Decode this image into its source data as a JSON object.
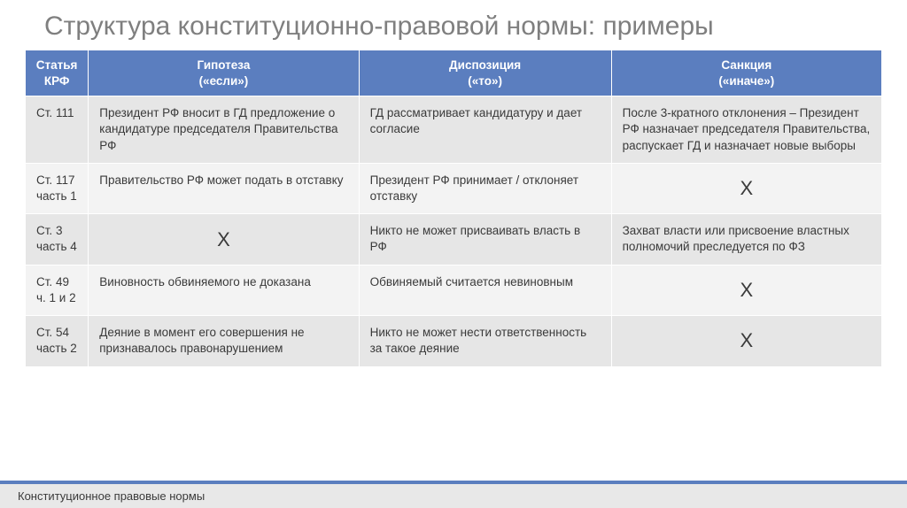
{
  "title": "Структура конституционно-правовой нормы: примеры",
  "table": {
    "type": "table",
    "header_bg": "#5b7ebf",
    "header_fg": "#ffffff",
    "row_odd_bg": "#e6e6e6",
    "row_even_bg": "#f3f3f3",
    "columns": [
      {
        "label_line1": "Статья",
        "label_line2": "КРФ"
      },
      {
        "label_line1": "Гипотеза",
        "label_line2": "(«если»)"
      },
      {
        "label_line1": "Диспозиция",
        "label_line2": "(«то»)"
      },
      {
        "label_line1": "Санкция",
        "label_line2": "(«иначе»)"
      }
    ],
    "x_mark": "X",
    "rows": [
      {
        "article": "Ст. 111",
        "hypothesis": "Президент РФ вносит в ГД предложение о кандидатуре председателя Правительства РФ",
        "disposition": "ГД рассматривает кандидатуру и дает согласие",
        "sanction": "После 3-кратного отклонения – Президент РФ назначает председателя Правительства, распускает ГД и назначает новые выборы",
        "hypothesis_x": false,
        "sanction_x": false
      },
      {
        "article": "Ст. 117 часть 1",
        "hypothesis": "Правительство РФ может подать в отставку",
        "disposition": "Президент РФ принимает / отклоняет отставку",
        "sanction": "",
        "hypothesis_x": false,
        "sanction_x": true
      },
      {
        "article": "Ст. 3 часть 4",
        "hypothesis": "",
        "disposition": "Никто не может присваивать власть в РФ",
        "sanction": "Захват власти или присвоение властных полномочий преследуется по ФЗ",
        "hypothesis_x": true,
        "sanction_x": false
      },
      {
        "article": "Ст. 49 ч. 1 и 2",
        "hypothesis": "Виновность обвиняемого не доказана",
        "disposition": "Обвиняемый считается невиновным",
        "sanction": "",
        "hypothesis_x": false,
        "sanction_x": true
      },
      {
        "article": "Ст. 54 часть 2",
        "hypothesis": "Деяние в момент его совершения не признавалось правонарушением",
        "disposition": "Никто не может нести ответственность за такое деяние",
        "sanction": "",
        "hypothesis_x": false,
        "sanction_x": true
      }
    ]
  },
  "footer": "Конституционное правовые нормы"
}
